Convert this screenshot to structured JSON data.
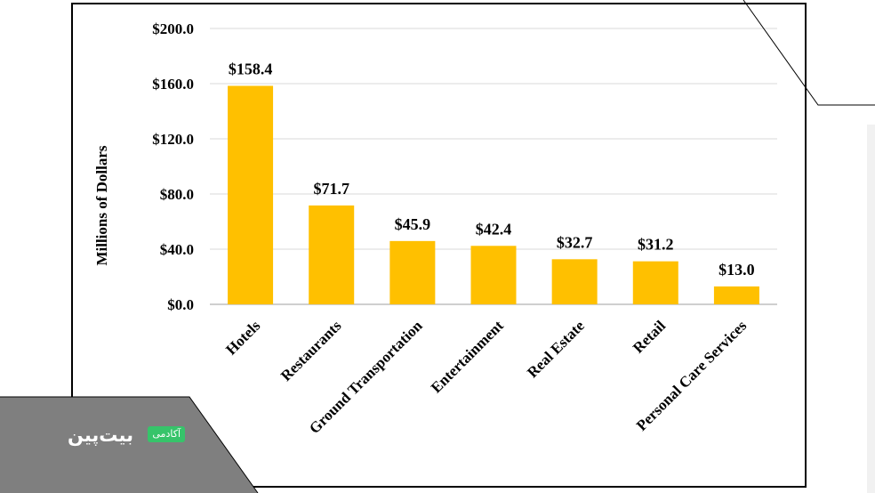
{
  "chart_data": {
    "type": "bar",
    "title": "",
    "xlabel": "",
    "ylabel": "Millions of Dollars",
    "categories": [
      "Hotels",
      "Restaurants",
      "Ground Transportation",
      "Entertainment",
      "Real Estate",
      "Retail",
      "Personal Care Services"
    ],
    "values": [
      158.4,
      71.7,
      45.9,
      42.4,
      32.7,
      31.2,
      13.0
    ],
    "data_labels": [
      "$158.4",
      "$71.7",
      "$45.9",
      "$42.4",
      "$32.7",
      "$31.2",
      "$13.0"
    ],
    "ylim": [
      0,
      200
    ],
    "yticks": [
      0,
      40,
      80,
      120,
      160,
      200
    ],
    "ytick_labels": [
      "$0.0",
      "$40.0",
      "$80.0",
      "$120.0",
      "$160.0",
      "$200.0"
    ],
    "grid": true,
    "bar_color": "#ffc000",
    "grid_color": "#d9d9d9"
  },
  "watermark": {
    "logo_word": "بیت‌پین",
    "badge": "آکادمی",
    "panel_color": "#7f7f7f",
    "badge_color": "#36c46a"
  }
}
